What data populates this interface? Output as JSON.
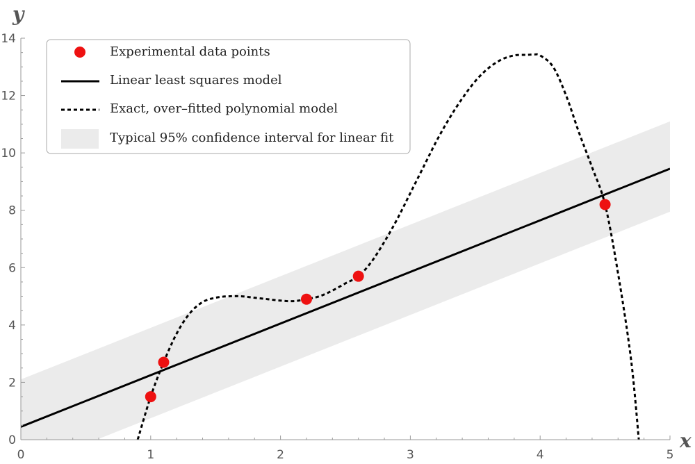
{
  "chart_data": {
    "type": "line",
    "title": "",
    "xlabel": "x",
    "ylabel": "y",
    "xlim": [
      0,
      5
    ],
    "ylim": [
      0,
      14
    ],
    "x_ticks": [
      0,
      1,
      2,
      3,
      4,
      5
    ],
    "y_ticks": [
      0,
      2,
      4,
      6,
      8,
      10,
      12,
      14
    ],
    "grid": false,
    "legend_position": "top-left",
    "colors": {
      "points": "#ee1111",
      "band": "#ebebeb",
      "line": "#000000",
      "axis": "#999999",
      "legend_border": "#aaaaaa"
    },
    "series": [
      {
        "name": "Experimental data points",
        "kind": "scatter",
        "x": [
          1.0,
          1.1,
          2.2,
          2.6,
          4.5
        ],
        "y": [
          1.5,
          2.7,
          4.9,
          5.7,
          8.2
        ]
      },
      {
        "name": "Linear least squares model",
        "kind": "line",
        "intercept": 0.45,
        "slope": 1.8
      },
      {
        "name": "Exact, over–fitted polynomial model",
        "kind": "dashed-line",
        "x": [
          0.9,
          1.0,
          1.1,
          1.2,
          1.3,
          1.4,
          1.5,
          1.6,
          1.7,
          1.8,
          1.9,
          2.0,
          2.1,
          2.2,
          2.3,
          2.4,
          2.5,
          2.6,
          2.7,
          2.8,
          2.9,
          3.0,
          3.1,
          3.2,
          3.3,
          3.4,
          3.5,
          3.6,
          3.7,
          3.8,
          3.9,
          3.95,
          4.0,
          4.1,
          4.2,
          4.3,
          4.4,
          4.5,
          4.6,
          4.7,
          4.76
        ],
        "y": [
          0.0,
          1.5,
          2.7,
          3.7,
          4.4,
          4.8,
          4.95,
          5.0,
          5.0,
          4.95,
          4.9,
          4.85,
          4.83,
          4.9,
          5.0,
          5.2,
          5.45,
          5.7,
          6.2,
          6.9,
          7.7,
          8.6,
          9.5,
          10.4,
          11.2,
          11.9,
          12.5,
          12.95,
          13.25,
          13.4,
          13.42,
          13.43,
          13.4,
          13.0,
          12.0,
          10.7,
          9.5,
          8.2,
          5.8,
          2.8,
          0.0
        ]
      },
      {
        "name": "Typical 95% confidence interval for linear fit",
        "kind": "band",
        "x": [
          0,
          5
        ],
        "lower": [
          -1.05,
          7.95
        ],
        "upper": [
          2.1,
          11.1
        ]
      }
    ]
  }
}
